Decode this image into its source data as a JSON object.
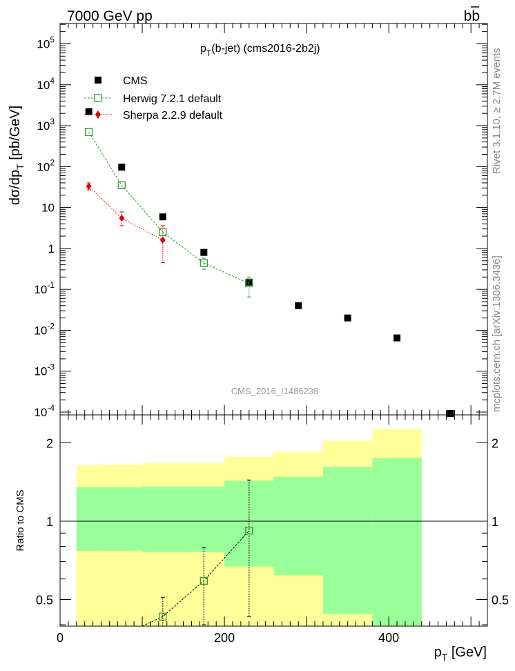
{
  "header": {
    "left": "7000 GeV pp",
    "right": "bb",
    "right_overline": "b"
  },
  "side_labels": {
    "rivet": "Rivet 3.1.10, ≥ 2.7M events",
    "mcplots": "mcplots.cern.ch [arXiv:1306.3436]"
  },
  "plot_title": "p_T(b-jet) (cms2016-2b2j)",
  "watermark": "CMS_2016_I1486238",
  "legend": [
    {
      "label": "CMS",
      "marker": "filled-square"
    },
    {
      "label": "Herwig 7.2.1 default",
      "marker": "open-square"
    },
    {
      "label": "Sherpa 2.2.9 default",
      "marker": "filled-diamond"
    }
  ],
  "colors": {
    "data": "#000000",
    "herwig": "#339933",
    "sherpa": "#dd0000",
    "band_inner": "#99ff99",
    "band_outer": "#ffff99"
  },
  "chart_data": [
    {
      "type": "scatter",
      "yscale": "log",
      "ylabel": "dσ/dp_T [pb/GeV]",
      "xlim": [
        0,
        520
      ],
      "ylim": [
        0.0001,
        300000
      ],
      "yticks": [
        {
          "value": 0.0001,
          "label": "10^-4"
        },
        {
          "value": 0.001,
          "label": "10^-3"
        },
        {
          "value": 0.01,
          "label": "10^-2"
        },
        {
          "value": 0.1,
          "label": "10^-1"
        },
        {
          "value": 1,
          "label": "1"
        },
        {
          "value": 10,
          "label": "10"
        },
        {
          "value": 100,
          "label": "10^2"
        },
        {
          "value": 1000,
          "label": "10^3"
        },
        {
          "value": 10000,
          "label": "10^4"
        },
        {
          "value": 100000,
          "label": "10^5"
        }
      ],
      "series": [
        {
          "name": "CMS",
          "style": "data",
          "x": [
            35,
            75,
            125,
            175,
            230,
            290,
            350,
            410,
            475
          ],
          "y": [
            2200,
            97,
            5.9,
            0.8,
            0.15,
            0.04,
            0.02,
            0.0065,
            8.5e-05
          ]
        },
        {
          "name": "Herwig 7.2.1 default",
          "style": "herwig",
          "x": [
            35,
            75,
            125,
            175,
            230
          ],
          "y": [
            700,
            35,
            2.5,
            0.44,
            0.14
          ],
          "err_lo": [
            null,
            null,
            null,
            0.31,
            0.065
          ],
          "err_hi": [
            null,
            null,
            null,
            0.58,
            0.2
          ]
        },
        {
          "name": "Sherpa 2.2.9 default",
          "style": "sherpa",
          "x": [
            35,
            75,
            125
          ],
          "y": [
            33,
            5.5,
            1.6
          ],
          "err_lo": [
            27,
            3.6,
            0.45
          ],
          "err_hi": [
            40,
            7.8,
            3.6
          ]
        }
      ]
    },
    {
      "type": "line",
      "ylabel": "Ratio to CMS",
      "xlabel": "p_T [GeV]",
      "xlim": [
        0,
        520
      ],
      "ylim": [
        0.35,
        2.3
      ],
      "xticks": [
        0,
        200,
        400
      ],
      "yticks": [
        0.5,
        1,
        2
      ],
      "bands": [
        {
          "x0": 20,
          "x1": 50,
          "inner": [
            0.77,
            1.35
          ],
          "outer": [
            0.39,
            1.64
          ]
        },
        {
          "x0": 50,
          "x1": 100,
          "inner": [
            0.77,
            1.35
          ],
          "outer": [
            0.39,
            1.65
          ]
        },
        {
          "x0": 100,
          "x1": 150,
          "inner": [
            0.76,
            1.36
          ],
          "outer": [
            0.39,
            1.67
          ]
        },
        {
          "x0": 150,
          "x1": 200,
          "inner": [
            0.76,
            1.36
          ],
          "outer": [
            0.39,
            1.67
          ]
        },
        {
          "x0": 200,
          "x1": 260,
          "inner": [
            0.67,
            1.43
          ],
          "outer": [
            0.39,
            1.77
          ]
        },
        {
          "x0": 260,
          "x1": 320,
          "inner": [
            0.62,
            1.48
          ],
          "outer": [
            0.39,
            1.85
          ]
        },
        {
          "x0": 320,
          "x1": 380,
          "inner": [
            0.44,
            1.62
          ],
          "outer": [
            0.39,
            2.04
          ]
        },
        {
          "x0": 380,
          "x1": 440,
          "inner": [
            0.35,
            1.75
          ],
          "outer": [
            0.35,
            2.26
          ]
        }
      ],
      "series": [
        {
          "name": "Herwig 7.2.1 default",
          "style": "herwig",
          "x": [
            100,
            125,
            175,
            230
          ],
          "y": [
            0.31,
            0.43,
            0.59,
            0.92
          ],
          "marker_from": 1,
          "err_lo": [
            null,
            0.34,
            0.4,
            0.43
          ],
          "err_hi": [
            null,
            0.51,
            0.79,
            1.44
          ]
        }
      ]
    }
  ]
}
